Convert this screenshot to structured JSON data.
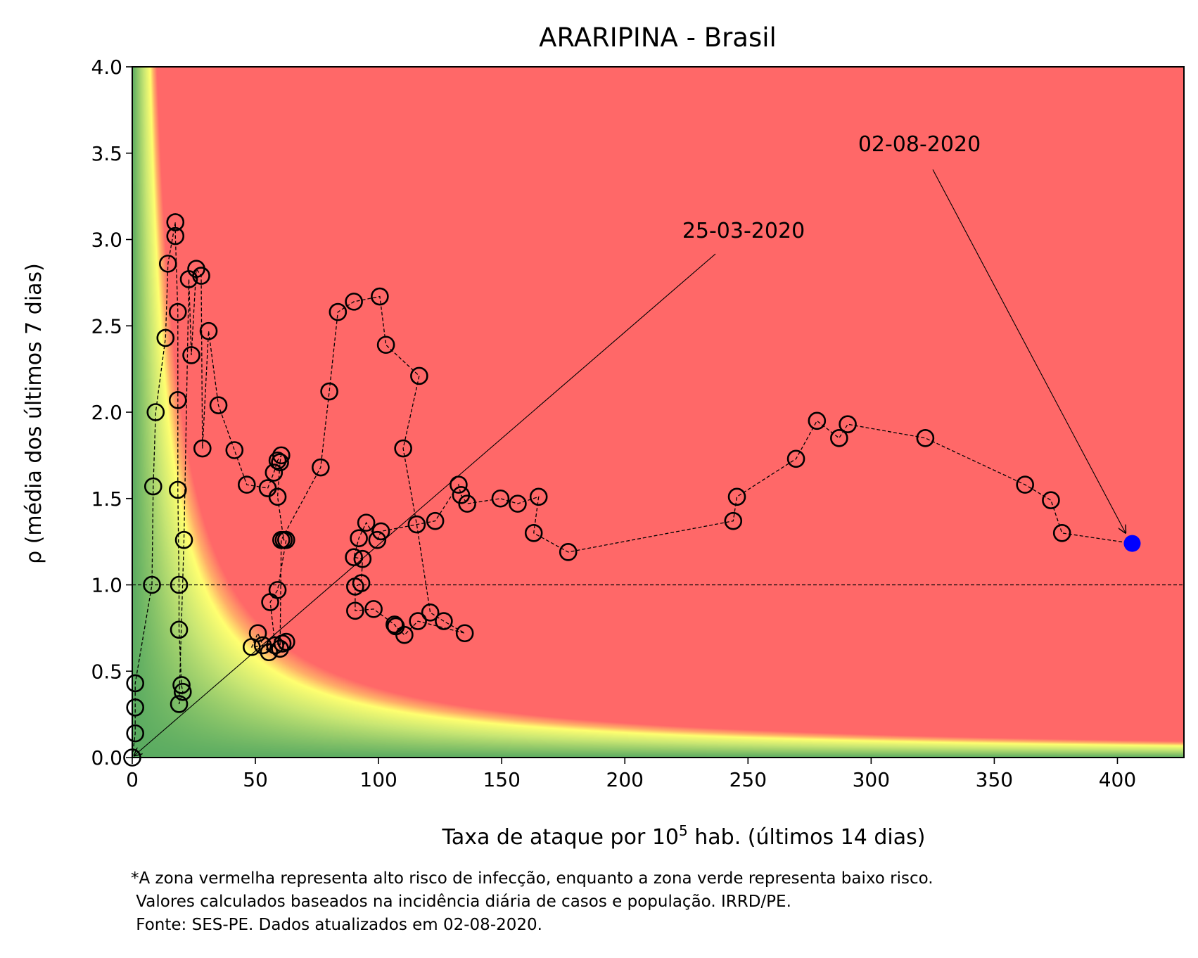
{
  "chart_data": {
    "type": "scatter",
    "title": "ARARIPINA - Brasil",
    "xlabel_main": "Taxa de ataque por 10",
    "xlabel_sup": "5",
    "xlabel_rest": " hab. (últimos 14 dias)",
    "ylabel": "ρ (média dos últimos 7 dias)",
    "xlim": [
      0,
      427
    ],
    "ylim": [
      0,
      4
    ],
    "x_ticks": [
      0,
      50,
      100,
      150,
      200,
      250,
      300,
      350,
      400
    ],
    "x_tick_labels": [
      "0",
      "50",
      "100",
      "150",
      "200",
      "250",
      "300",
      "350",
      "400"
    ],
    "y_ticks": [
      0,
      0.5,
      1,
      1.5,
      2,
      2.5,
      3,
      3.5,
      4
    ],
    "y_tick_labels": [
      "0.0",
      "0.5",
      "1.0",
      "1.5",
      "2.0",
      "2.5",
      "3.0",
      "3.5",
      "4.0"
    ],
    "reference_line_y": 1.0,
    "background": "risk heatmap: green (low risk) near origin, yellow band, red (high risk) above curve rho*x ≈ 30",
    "colors": {
      "red": "#ff6868",
      "yellow": "#ffff70",
      "green": "#5aab61",
      "last_point": "#0000ff"
    },
    "series": [
      {
        "x": [
          0.0,
          1.2,
          1.2,
          1.2,
          8.0,
          8.5,
          9.5,
          13.5,
          14.5,
          17.5,
          17.5,
          18.5,
          18.5,
          18.5,
          19.0,
          19.0,
          20.0,
          20.5,
          19.0,
          21.0,
          23.0,
          24.0,
          26.0,
          28.0,
          28.5,
          31.0,
          35.0,
          41.5,
          46.5,
          55.0,
          57.5,
          59.0,
          60.5,
          60.0,
          59.0,
          61.5,
          62.5,
          59.0,
          56.0,
          58.0,
          55.5,
          53.0,
          51.0,
          48.5,
          61.0,
          62.5,
          60.0,
          60.5,
          76.5,
          80.0,
          83.5,
          90.0,
          100.5,
          103.0,
          116.5,
          110.0,
          115.5,
          121.0,
          126.5,
          135.0,
          116.0,
          110.5,
          107.0,
          106.5,
          98.0,
          90.5,
          90.5,
          93.0,
          93.5,
          90.0,
          92.0,
          95.0,
          99.5,
          101.0,
          123.0,
          132.5,
          133.5,
          136.0,
          149.5,
          156.5,
          165.0,
          163.0,
          177.0,
          244.0,
          245.5,
          269.5,
          278.0,
          287.0,
          290.5,
          322.0,
          362.5,
          373.0,
          377.5,
          406.0
        ],
        "y": [
          0.0,
          0.14,
          0.29,
          0.43,
          1.0,
          1.57,
          2.0,
          2.43,
          2.86,
          3.1,
          3.02,
          2.58,
          2.07,
          1.55,
          1.0,
          0.74,
          0.42,
          0.38,
          0.31,
          1.26,
          2.77,
          2.33,
          2.83,
          2.79,
          1.79,
          2.47,
          2.04,
          1.78,
          1.58,
          1.56,
          1.65,
          1.72,
          1.75,
          1.71,
          1.51,
          1.26,
          1.26,
          0.97,
          0.9,
          0.65,
          0.61,
          0.65,
          0.72,
          0.64,
          0.66,
          0.67,
          0.63,
          1.26,
          1.68,
          2.12,
          2.58,
          2.64,
          2.67,
          2.39,
          2.21,
          1.79,
          1.35,
          0.84,
          0.79,
          0.72,
          0.79,
          0.71,
          0.76,
          0.77,
          0.86,
          0.85,
          0.99,
          1.01,
          1.15,
          1.16,
          1.27,
          1.36,
          1.26,
          1.31,
          1.37,
          1.58,
          1.52,
          1.47,
          1.5,
          1.47,
          1.51,
          1.3,
          1.19,
          1.37,
          1.51,
          1.73,
          1.95,
          1.85,
          1.93,
          1.85,
          1.58,
          1.49,
          1.3,
          1.24
        ]
      }
    ],
    "annotations": [
      {
        "text": "25-03-2020",
        "target": [
          0.0,
          0.0
        ]
      },
      {
        "text": "02-08-2020",
        "target": [
          406.0,
          1.24
        ]
      }
    ]
  },
  "footnote": {
    "line1": "*A zona vermelha representa alto risco de infecção, enquanto a zona verde representa baixo risco.",
    "line2": " Valores calculados baseados na incidência diária de casos e população. IRRD/PE.",
    "line3": " Fonte: SES-PE. Dados atualizados em 02-08-2020."
  }
}
